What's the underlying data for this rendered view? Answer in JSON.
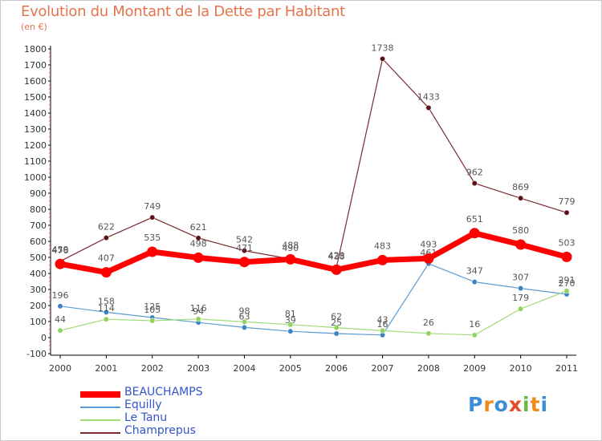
{
  "header": {
    "title": "Evolution du Montant de la Dette par Habitant",
    "subtitle": "(en €)"
  },
  "logo_letters": [
    "P",
    "r",
    "o",
    "x",
    "i",
    "t",
    "i"
  ],
  "chart_data": {
    "type": "line",
    "title": "Evolution du Montant de la Dette par Habitant",
    "ylabel": "(en €)",
    "xlabel": "",
    "ylim": [
      -100,
      1800
    ],
    "yticks": [
      -100,
      0,
      100,
      200,
      300,
      400,
      500,
      600,
      700,
      800,
      900,
      1000,
      1100,
      1200,
      1300,
      1400,
      1500,
      1600,
      1700,
      1800
    ],
    "x": [
      "2000",
      "2001",
      "2002",
      "2003",
      "2004",
      "2005",
      "2006",
      "2007",
      "2008",
      "2009",
      "2010",
      "2011"
    ],
    "grid": false,
    "legend_position": "bottom-left",
    "series": [
      {
        "name": "Champrepus",
        "color": "#7a2a2e",
        "point_color": "#5a1218",
        "width": 1.2,
        "values": [
          476,
          622,
          749,
          621,
          542,
          490,
          438,
          1738,
          1433,
          962,
          869,
          779
        ]
      },
      {
        "name": "Equilly",
        "color": "#5b9bd5",
        "point_color": "#3a82c4",
        "width": 1.2,
        "values": [
          196,
          158,
          125,
          94,
          63,
          39,
          25,
          16,
          461,
          347,
          307,
          270
        ]
      },
      {
        "name": "Le Tanu",
        "color": "#a0dc78",
        "point_color": "#8fd35c",
        "width": 1.2,
        "values": [
          44,
          114,
          105,
          116,
          98,
          81,
          62,
          43,
          26,
          16,
          179,
          291
        ]
      },
      {
        "name": "BEAUCHAMPS",
        "color": "#ff0000",
        "point_color": "#ff0000",
        "width": 7,
        "values": [
          459,
          407,
          535,
          498,
          471,
          488,
          423,
          483,
          493,
          651,
          580,
          503
        ]
      }
    ],
    "legend_order": [
      "BEAUCHAMPS",
      "Equilly",
      "Le Tanu",
      "Champrepus"
    ]
  }
}
